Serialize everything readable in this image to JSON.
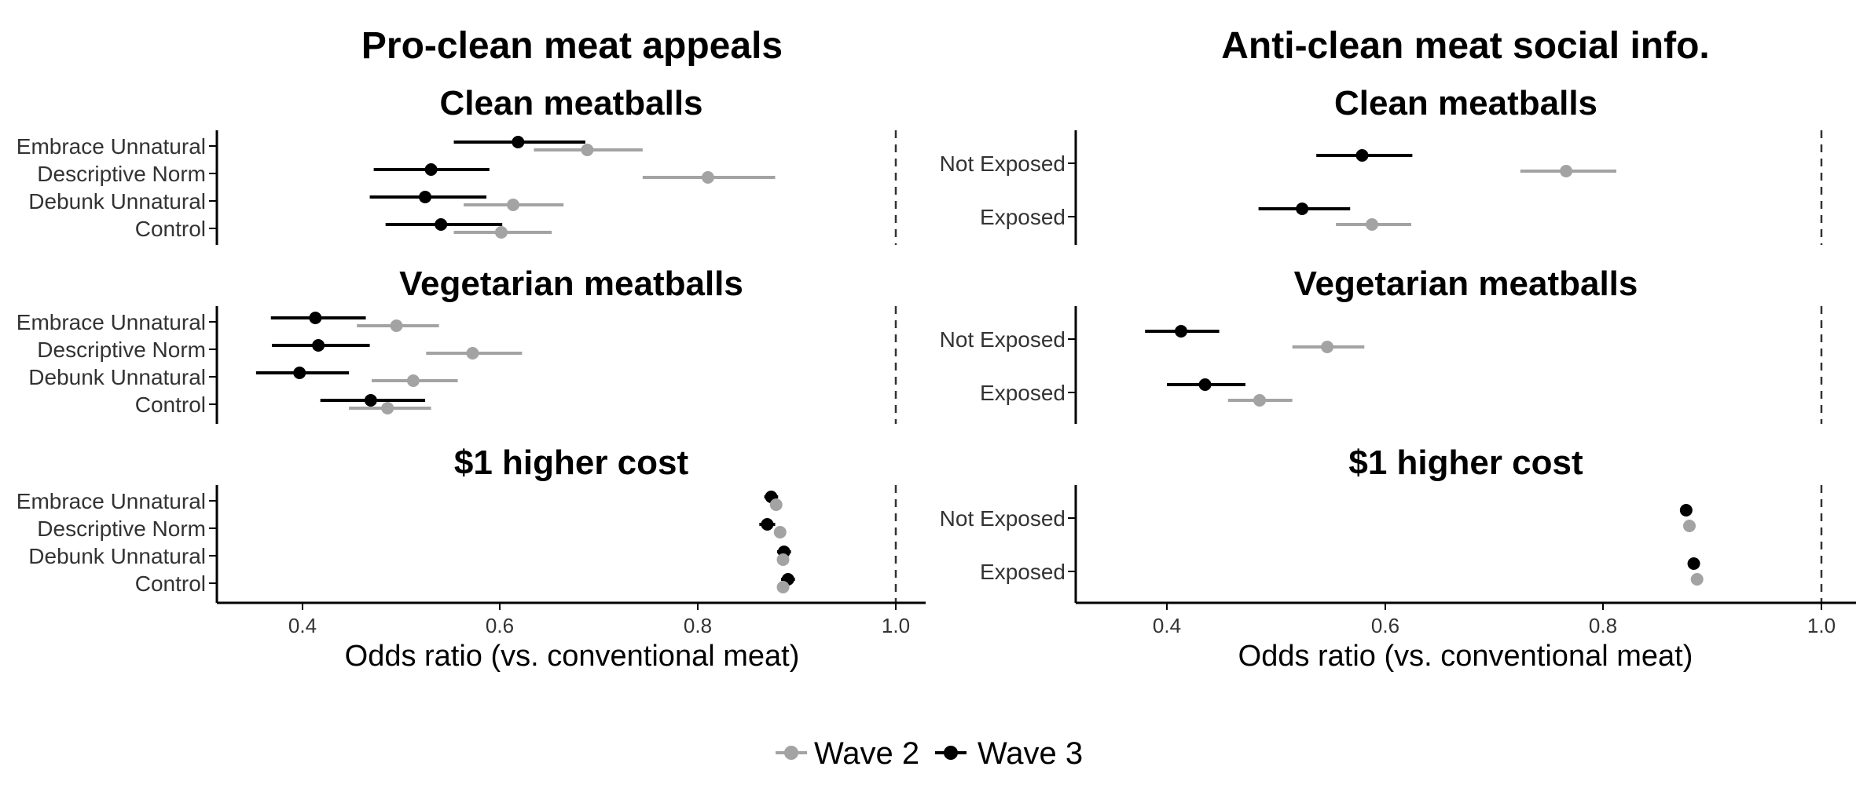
{
  "colors": {
    "wave2": "#a3a3a3",
    "wave3": "#000000",
    "axis": "#000000",
    "refline": "#333333"
  },
  "legend": {
    "items": [
      {
        "label": "Wave 2",
        "color": "#a3a3a3"
      },
      {
        "label": "Wave 3",
        "color": "#000000"
      }
    ]
  },
  "chart_data": [
    {
      "type": "forest",
      "column_title": "Pro-clean meat appeals",
      "xlabel": "Odds ratio (vs. conventional meat)",
      "xlim": [
        0.32,
        1.03
      ],
      "x_ticks": [
        "0.4",
        "0.6",
        "0.8",
        "1.0"
      ],
      "reference_line": 1.0,
      "categories": [
        "Embrace Unnatural",
        "Descriptive Norm",
        "Debunk Unnatural",
        "Control"
      ],
      "panels": [
        {
          "title": "Clean meatballs",
          "series": [
            {
              "name": "Wave 3",
              "estimates": [
                0.618,
                0.53,
                0.524,
                0.54
              ],
              "lower": [
                0.553,
                0.472,
                0.468,
                0.484
              ],
              "upper": [
                0.686,
                0.589,
                0.586,
                0.602
              ]
            },
            {
              "name": "Wave 2",
              "estimates": [
                0.688,
                0.81,
                0.613,
                0.601
              ],
              "lower": [
                0.634,
                0.744,
                0.563,
                0.553
              ],
              "upper": [
                0.744,
                0.878,
                0.664,
                0.652
              ]
            }
          ]
        },
        {
          "title": "Vegetarian meatballs",
          "series": [
            {
              "name": "Wave 3",
              "estimates": [
                0.413,
                0.416,
                0.397,
                0.469
              ],
              "lower": [
                0.368,
                0.369,
                0.353,
                0.418
              ],
              "upper": [
                0.464,
                0.468,
                0.447,
                0.524
              ]
            },
            {
              "name": "Wave 2",
              "estimates": [
                0.495,
                0.572,
                0.512,
                0.486
              ],
              "lower": [
                0.455,
                0.525,
                0.47,
                0.447
              ],
              "upper": [
                0.538,
                0.622,
                0.557,
                0.53
              ]
            }
          ]
        },
        {
          "title": "$1 higher cost",
          "series": [
            {
              "name": "Wave 3",
              "estimates": [
                0.874,
                0.87,
                0.887,
                0.891
              ],
              "lower": [
                0.867,
                0.862,
                0.88,
                0.884
              ],
              "upper": [
                0.881,
                0.878,
                0.894,
                0.898
              ]
            },
            {
              "name": "Wave 2",
              "estimates": [
                0.879,
                0.883,
                0.886,
                0.886
              ],
              "lower": [
                0.876,
                0.88,
                0.883,
                0.883
              ],
              "upper": [
                0.882,
                0.886,
                0.889,
                0.889
              ]
            }
          ]
        }
      ]
    },
    {
      "type": "forest",
      "column_title": "Anti-clean meat social info.",
      "xlabel": "Odds ratio (vs. conventional meat)",
      "xlim": [
        0.32,
        1.03
      ],
      "x_ticks": [
        "0.4",
        "0.6",
        "0.8",
        "1.0"
      ],
      "reference_line": 1.0,
      "categories": [
        "Not Exposed",
        "Exposed"
      ],
      "panels": [
        {
          "title": "Clean meatballs",
          "series": [
            {
              "name": "Wave 3",
              "estimates": [
                0.579,
                0.524
              ],
              "lower": [
                0.537,
                0.484
              ],
              "upper": [
                0.625,
                0.568
              ]
            },
            {
              "name": "Wave 2",
              "estimates": [
                0.766,
                0.588
              ],
              "lower": [
                0.724,
                0.555
              ],
              "upper": [
                0.812,
                0.624
              ]
            }
          ]
        },
        {
          "title": "Vegetarian meatballs",
          "series": [
            {
              "name": "Wave 3",
              "estimates": [
                0.413,
                0.435
              ],
              "lower": [
                0.38,
                0.4
              ],
              "upper": [
                0.448,
                0.472
              ]
            },
            {
              "name": "Wave 2",
              "estimates": [
                0.547,
                0.485
              ],
              "lower": [
                0.515,
                0.456
              ],
              "upper": [
                0.581,
                0.515
              ]
            }
          ]
        },
        {
          "title": "$1 higher cost",
          "series": [
            {
              "name": "Wave 3",
              "estimates": [
                0.876,
                0.883
              ],
              "lower": [
                0.874,
                0.881
              ],
              "upper": [
                0.878,
                0.885
              ]
            },
            {
              "name": "Wave 2",
              "estimates": [
                0.879,
                0.886
              ],
              "lower": [
                0.877,
                0.884
              ],
              "upper": [
                0.881,
                0.888
              ]
            }
          ]
        }
      ]
    }
  ]
}
